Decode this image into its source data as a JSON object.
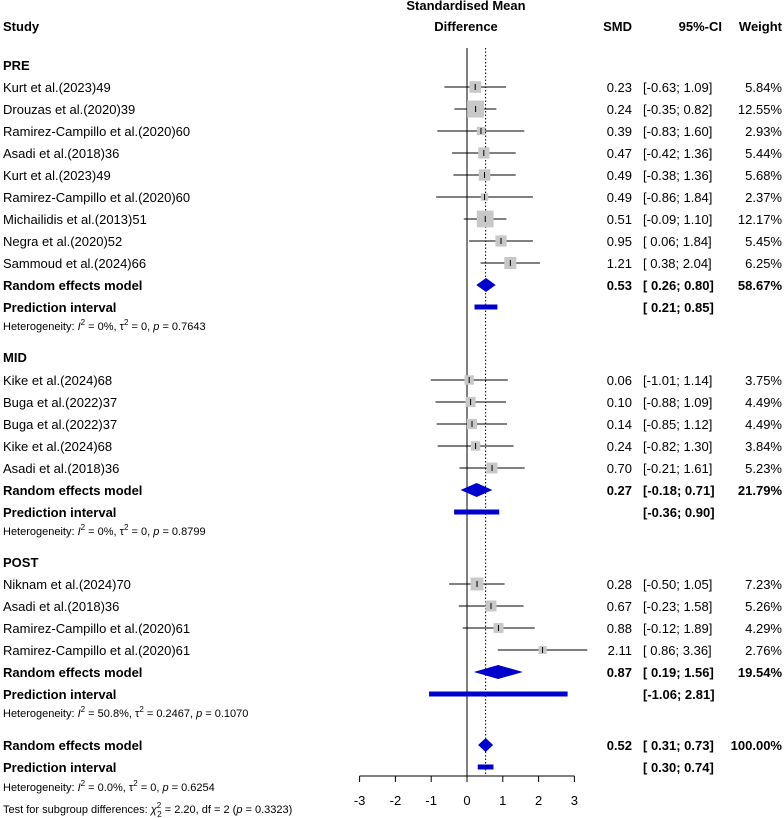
{
  "chart_data": {
    "type": "forest",
    "header": {
      "study": "Study",
      "effect_line1": "Standardised Mean",
      "effect_line2": "Difference",
      "smd": "SMD",
      "ci": "95%-CI",
      "weight": "Weight"
    },
    "x_ticks": [
      -3,
      -2,
      -1,
      0,
      1,
      2,
      3
    ],
    "x_tick_labels": [
      "-3",
      "-2",
      "-1",
      "0",
      "1",
      "2",
      "3"
    ],
    "xlim": [
      -3,
      3
    ],
    "null_line": 0,
    "pooled_dotted_line": 0.52,
    "colors": {
      "square": "#c8c8c8",
      "diamond": "#0000cc",
      "line": "#000000"
    },
    "subgroups": [
      {
        "name": "PRE",
        "studies": [
          {
            "label": "Kurt et al.(2023)49",
            "smd": 0.23,
            "lo": -0.63,
            "hi": 1.09,
            "smd_text": "0.23",
            "ci_text": "[-0.63; 1.09]",
            "weight_text": "5.84%",
            "weight": 5.84
          },
          {
            "label": "Drouzas et al.(2020)39",
            "smd": 0.24,
            "lo": -0.35,
            "hi": 0.82,
            "smd_text": "0.24",
            "ci_text": "[-0.35; 0.82]",
            "weight_text": "12.55%",
            "weight": 12.55
          },
          {
            "label": "Ramirez-Campillo et al.(2020)60",
            "smd": 0.39,
            "lo": -0.83,
            "hi": 1.6,
            "smd_text": "0.39",
            "ci_text": "[-0.83; 1.60]",
            "weight_text": "2.93%",
            "weight": 2.93
          },
          {
            "label": "Asadi et al.(2018)36",
            "smd": 0.47,
            "lo": -0.42,
            "hi": 1.36,
            "smd_text": "0.47",
            "ci_text": "[-0.42; 1.36]",
            "weight_text": "5.44%",
            "weight": 5.44
          },
          {
            "label": "Kurt et al.(2023)49",
            "smd": 0.49,
            "lo": -0.38,
            "hi": 1.36,
            "smd_text": "0.49",
            "ci_text": "[-0.38; 1.36]",
            "weight_text": "5.68%",
            "weight": 5.68
          },
          {
            "label": "Ramirez-Campillo et al.(2020)60",
            "smd": 0.49,
            "lo": -0.86,
            "hi": 1.84,
            "smd_text": "0.49",
            "ci_text": "[-0.86; 1.84]",
            "weight_text": "2.37%",
            "weight": 2.37
          },
          {
            "label": "Michailidis et al.(2013)51",
            "smd": 0.51,
            "lo": -0.09,
            "hi": 1.1,
            "smd_text": "0.51",
            "ci_text": "[-0.09; 1.10]",
            "weight_text": "12.17%",
            "weight": 12.17
          },
          {
            "label": "Negra et al.(2020)52",
            "smd": 0.95,
            "lo": 0.06,
            "hi": 1.84,
            "smd_text": "0.95",
            "ci_text": "[ 0.06; 1.84]",
            "weight_text": "5.45%",
            "weight": 5.45
          },
          {
            "label": "Sammoud et al.(2024)66",
            "smd": 1.21,
            "lo": 0.38,
            "hi": 2.04,
            "smd_text": "1.21",
            "ci_text": "[ 0.38; 2.04]",
            "weight_text": "6.25%",
            "weight": 6.25
          }
        ],
        "random": {
          "label": "Random effects model",
          "smd": 0.53,
          "lo": 0.26,
          "hi": 0.8,
          "smd_text": "0.53",
          "ci_text": "[ 0.26; 0.80]",
          "weight_text": "58.67%"
        },
        "prediction": {
          "label": "Prediction interval",
          "lo": 0.21,
          "hi": 0.85,
          "ci_text": "[ 0.21; 0.85]"
        },
        "heterogeneity": {
          "prefix": "Heterogeneity: ",
          "i2_symbol": "I",
          "i2_value": " = 0%, ",
          "tau_symbol": "τ",
          "tau_value": " = 0, ",
          "p_symbol": "p",
          "p_value": " = 0.7643"
        }
      },
      {
        "name": "MID",
        "studies": [
          {
            "label": "Kike et al.(2024)68",
            "smd": 0.06,
            "lo": -1.01,
            "hi": 1.14,
            "smd_text": "0.06",
            "ci_text": "[-1.01; 1.14]",
            "weight_text": "3.75%",
            "weight": 3.75
          },
          {
            "label": "Buga et al.(2022)37",
            "smd": 0.1,
            "lo": -0.88,
            "hi": 1.09,
            "smd_text": "0.10",
            "ci_text": "[-0.88; 1.09]",
            "weight_text": "4.49%",
            "weight": 4.49
          },
          {
            "label": "Buga et al.(2022)37",
            "smd": 0.14,
            "lo": -0.85,
            "hi": 1.12,
            "smd_text": "0.14",
            "ci_text": "[-0.85; 1.12]",
            "weight_text": "4.49%",
            "weight": 4.49
          },
          {
            "label": "Kike et al.(2024)68",
            "smd": 0.24,
            "lo": -0.82,
            "hi": 1.3,
            "smd_text": "0.24",
            "ci_text": "[-0.82; 1.30]",
            "weight_text": "3.84%",
            "weight": 3.84
          },
          {
            "label": "Asadi et al.(2018)36",
            "smd": 0.7,
            "lo": -0.21,
            "hi": 1.61,
            "smd_text": "0.70",
            "ci_text": "[-0.21; 1.61]",
            "weight_text": "5.23%",
            "weight": 5.23
          }
        ],
        "random": {
          "label": "Random effects model",
          "smd": 0.27,
          "lo": -0.18,
          "hi": 0.71,
          "smd_text": "0.27",
          "ci_text": "[-0.18; 0.71]",
          "weight_text": "21.79%"
        },
        "prediction": {
          "label": "Prediction interval",
          "lo": -0.36,
          "hi": 0.9,
          "ci_text": "[-0.36; 0.90]"
        },
        "heterogeneity": {
          "prefix": "Heterogeneity: ",
          "i2_symbol": "I",
          "i2_value": " = 0%, ",
          "tau_symbol": "τ",
          "tau_value": " = 0, ",
          "p_symbol": "p",
          "p_value": " = 0.8799"
        }
      },
      {
        "name": "POST",
        "studies": [
          {
            "label": "Niknam et al.(2024)70",
            "smd": 0.28,
            "lo": -0.5,
            "hi": 1.05,
            "smd_text": "0.28",
            "ci_text": "[-0.50; 1.05]",
            "weight_text": "7.23%",
            "weight": 7.23
          },
          {
            "label": "Asadi et al.(2018)36",
            "smd": 0.67,
            "lo": -0.23,
            "hi": 1.58,
            "smd_text": "0.67",
            "ci_text": "[-0.23; 1.58]",
            "weight_text": "5.26%",
            "weight": 5.26
          },
          {
            "label": "Ramirez-Campillo et al.(2020)61",
            "smd": 0.88,
            "lo": -0.12,
            "hi": 1.89,
            "smd_text": "0.88",
            "ci_text": "[-0.12; 1.89]",
            "weight_text": "4.29%",
            "weight": 4.29
          },
          {
            "label": "Ramirez-Campillo et al.(2020)61",
            "smd": 2.11,
            "lo": 0.86,
            "hi": 3.36,
            "smd_text": "2.11",
            "ci_text": "[ 0.86; 3.36]",
            "weight_text": "2.76%",
            "weight": 2.76
          }
        ],
        "random": {
          "label": "Random effects model",
          "smd": 0.87,
          "lo": 0.19,
          "hi": 1.56,
          "smd_text": "0.87",
          "ci_text": "[ 0.19; 1.56]",
          "weight_text": "19.54%"
        },
        "prediction": {
          "label": "Prediction interval",
          "lo": -1.06,
          "hi": 2.81,
          "ci_text": "[-1.06; 2.81]"
        },
        "heterogeneity": {
          "prefix": "Heterogeneity: ",
          "i2_symbol": "I",
          "i2_value": " = 50.8%, ",
          "tau_symbol": "τ",
          "tau_value": " = 0.2467, ",
          "p_symbol": "p",
          "p_value": " = 0.1070"
        }
      }
    ],
    "overall": {
      "random": {
        "label": "Random effects model",
        "smd": 0.52,
        "lo": 0.31,
        "hi": 0.73,
        "smd_text": "0.52",
        "ci_text": "[ 0.31; 0.73]",
        "weight_text": "100.00%"
      },
      "prediction": {
        "label": "Prediction interval",
        "lo": 0.3,
        "hi": 0.74,
        "ci_text": "[ 0.30; 0.74]"
      },
      "heterogeneity": {
        "prefix": "Heterogeneity: ",
        "i2_symbol": "I",
        "i2_value": " = 0.0%, ",
        "tau_symbol": "τ",
        "tau_value": " = 0, ",
        "p_symbol": "p",
        "p_value": " = 0.6254"
      },
      "subgroup_test": {
        "prefix": "Test for subgroup differences: ",
        "chi_symbol": "χ",
        "chi_sub": "2",
        "chi_value": " = 2.20, df = 2 (",
        "p_symbol": "p",
        "p_value": " = 0.3323)"
      }
    }
  }
}
